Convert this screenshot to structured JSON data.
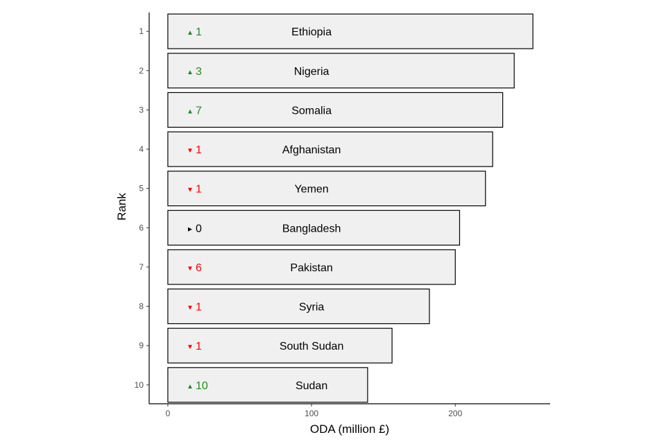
{
  "chart_data": {
    "type": "bar",
    "orientation": "horizontal",
    "xlabel": "ODA (million £)",
    "ylabel": "Rank",
    "xlim": [
      -13,
      266
    ],
    "xticks": [
      0,
      100,
      200
    ],
    "grid": false,
    "colors": {
      "bar_fill": "#f0f0f0",
      "bar_stroke": "#000000",
      "up": "#228b22",
      "down": "#ff0000",
      "same": "#000000"
    },
    "ranks": [
      1,
      2,
      3,
      4,
      5,
      6,
      7,
      8,
      9,
      10
    ],
    "categories": [
      "Ethiopia",
      "Nigeria",
      "Somalia",
      "Afghanistan",
      "Yemen",
      "Bangladesh",
      "Pakistan",
      "Syria",
      "South Sudan",
      "Sudan"
    ],
    "values": [
      254,
      241,
      233,
      226,
      221,
      203,
      200,
      182,
      156,
      139
    ],
    "rank_change": [
      {
        "direction": "up",
        "value": "1"
      },
      {
        "direction": "up",
        "value": "3"
      },
      {
        "direction": "up",
        "value": "7"
      },
      {
        "direction": "down",
        "value": "1"
      },
      {
        "direction": "down",
        "value": "1"
      },
      {
        "direction": "same",
        "value": "0"
      },
      {
        "direction": "down",
        "value": "6"
      },
      {
        "direction": "down",
        "value": "1"
      },
      {
        "direction": "down",
        "value": "1"
      },
      {
        "direction": "up",
        "value": "10"
      }
    ]
  }
}
